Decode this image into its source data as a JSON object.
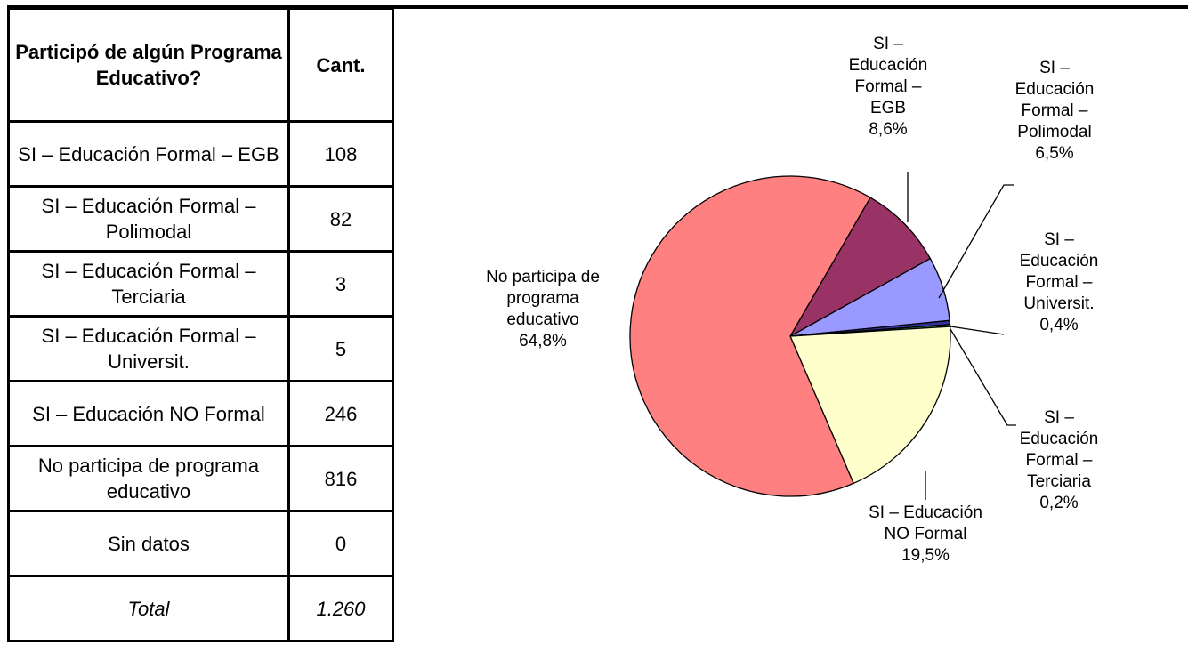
{
  "table": {
    "header": [
      "Participó de algún Programa Educativo?",
      "Cant."
    ],
    "rows": [
      [
        "SI – Educación Formal – EGB",
        "108"
      ],
      [
        "SI – Educación Formal – Polimodal",
        "82"
      ],
      [
        "SI – Educación Formal – Terciaria",
        "3"
      ],
      [
        "SI – Educación Formal – Universit.",
        "5"
      ],
      [
        "SI – Educación NO Formal",
        "246"
      ],
      [
        "No participa de programa educativo",
        "816"
      ],
      [
        "Sin datos",
        "0"
      ]
    ],
    "total": [
      "Total",
      "1.260"
    ]
  },
  "chart_data": {
    "type": "pie",
    "categories": [
      "SI – Educación Formal – EGB",
      "SI – Educación Formal – Polimodal",
      "SI – Educación Formal – Universit.",
      "SI – Educación Formal – Terciaria",
      "SI – Educación NO Formal",
      "No participa de programa educativo"
    ],
    "values": [
      8.6,
      6.5,
      0.4,
      0.2,
      19.5,
      64.8
    ],
    "value_labels": [
      "8,6%",
      "6,5%",
      "0,4%",
      "0,2%",
      "19,5%",
      "64,8%"
    ],
    "colors": [
      "#993366",
      "#9999ff",
      "#333399",
      "#339966",
      "#ffffcc",
      "#ff8080"
    ]
  }
}
